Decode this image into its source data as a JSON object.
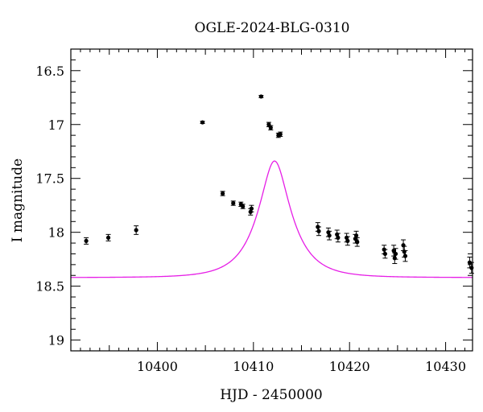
{
  "chart_data": {
    "type": "scatter",
    "title": "OGLE-2024-BLG-0310",
    "xlabel": "HJD - 2450000",
    "ylabel": "I magnitude",
    "xlim": [
      10391.0,
      10432.8
    ],
    "ylim": [
      19.1,
      16.3
    ],
    "y_inverted": true,
    "grid": false,
    "legend": "none",
    "x_ticks": [
      10400,
      10410,
      10420,
      10430
    ],
    "x_tick_labels": [
      "10400",
      "10410",
      "10420",
      "10430"
    ],
    "y_ticks": [
      16.5,
      17,
      17.5,
      18,
      18.5,
      19
    ],
    "y_tick_labels": [
      "16.5",
      "17",
      "17.5",
      "18",
      "18.5",
      "19"
    ],
    "colors": {
      "points": "#000000",
      "model": "#e61ee6",
      "axes": "#000000"
    },
    "model": {
      "t0": 10412.2,
      "u0": 0.39,
      "tE": 3.3,
      "baseline_mag": 18.42
    },
    "series": [
      {
        "values": [
          {
            "x": 10392.6,
            "y": 18.08,
            "err": 0.03
          },
          {
            "x": 10394.9,
            "y": 18.05,
            "err": 0.03
          },
          {
            "x": 10397.8,
            "y": 17.98,
            "err": 0.04
          },
          {
            "x": 10404.7,
            "y": 16.98,
            "err": 0.01
          },
          {
            "x": 10406.8,
            "y": 17.64,
            "err": 0.02
          },
          {
            "x": 10407.9,
            "y": 17.73,
            "err": 0.02
          },
          {
            "x": 10408.7,
            "y": 17.74,
            "err": 0.02
          },
          {
            "x": 10408.9,
            "y": 17.76,
            "err": 0.02
          },
          {
            "x": 10409.7,
            "y": 17.81,
            "err": 0.03
          },
          {
            "x": 10409.8,
            "y": 17.78,
            "err": 0.03
          },
          {
            "x": 10410.8,
            "y": 16.74,
            "err": 0.01
          },
          {
            "x": 10411.6,
            "y": 17.0,
            "err": 0.02
          },
          {
            "x": 10411.8,
            "y": 17.03,
            "err": 0.02
          },
          {
            "x": 10412.6,
            "y": 17.1,
            "err": 0.02
          },
          {
            "x": 10412.8,
            "y": 17.09,
            "err": 0.02
          },
          {
            "x": 10416.7,
            "y": 17.95,
            "err": 0.04
          },
          {
            "x": 10416.8,
            "y": 17.99,
            "err": 0.04
          },
          {
            "x": 10417.8,
            "y": 18.0,
            "err": 0.04
          },
          {
            "x": 10417.9,
            "y": 18.03,
            "err": 0.04
          },
          {
            "x": 10418.7,
            "y": 18.02,
            "err": 0.04
          },
          {
            "x": 10418.8,
            "y": 18.05,
            "err": 0.04
          },
          {
            "x": 10419.7,
            "y": 18.05,
            "err": 0.04
          },
          {
            "x": 10419.8,
            "y": 18.08,
            "err": 0.04
          },
          {
            "x": 10420.6,
            "y": 18.06,
            "err": 0.04
          },
          {
            "x": 10420.7,
            "y": 18.03,
            "err": 0.04
          },
          {
            "x": 10420.8,
            "y": 18.09,
            "err": 0.04
          },
          {
            "x": 10423.6,
            "y": 18.16,
            "err": 0.04
          },
          {
            "x": 10423.7,
            "y": 18.2,
            "err": 0.04
          },
          {
            "x": 10424.6,
            "y": 18.17,
            "err": 0.05
          },
          {
            "x": 10424.7,
            "y": 18.24,
            "err": 0.05
          },
          {
            "x": 10424.8,
            "y": 18.2,
            "err": 0.05
          },
          {
            "x": 10425.6,
            "y": 18.12,
            "err": 0.05
          },
          {
            "x": 10425.7,
            "y": 18.18,
            "err": 0.05
          },
          {
            "x": 10425.8,
            "y": 18.22,
            "err": 0.05
          },
          {
            "x": 10432.5,
            "y": 18.28,
            "err": 0.05
          },
          {
            "x": 10432.7,
            "y": 18.33,
            "err": 0.05
          }
        ]
      }
    ]
  }
}
